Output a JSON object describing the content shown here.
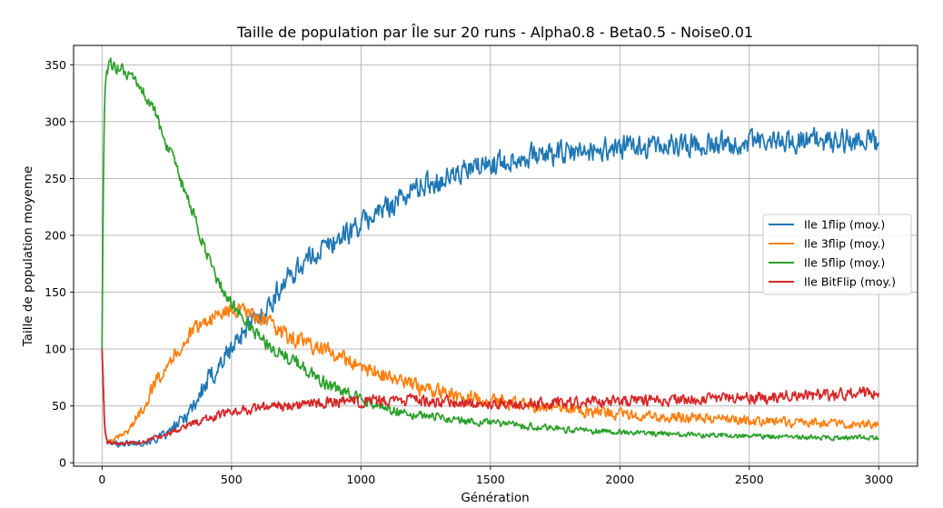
{
  "chart_data": {
    "type": "line",
    "title": "Taille de population par Île sur 20 runs - Alpha0.8 - Beta0.5 - Noise0.01",
    "xlabel": "Génération",
    "ylabel": "Taille de population moyenne",
    "xlim": [
      -110,
      3150
    ],
    "ylim": [
      -3,
      367
    ],
    "xticks": [
      0,
      500,
      1000,
      1500,
      2000,
      2500,
      3000
    ],
    "yticks": [
      0,
      50,
      100,
      150,
      200,
      250,
      300,
      350
    ],
    "xtick_labels": [
      "0",
      "500",
      "1000",
      "1500",
      "2000",
      "2500",
      "3000"
    ],
    "ytick_labels": [
      "0",
      "50",
      "100",
      "150",
      "200",
      "250",
      "300",
      "350"
    ],
    "grid": true,
    "legend_position": "center-right",
    "series": [
      {
        "name": "Ile 1flip (moy.)",
        "color": "#1f77b4",
        "noise": 9,
        "x": [
          0,
          10,
          20,
          50,
          100,
          150,
          200,
          250,
          300,
          350,
          400,
          450,
          500,
          550,
          600,
          650,
          700,
          750,
          800,
          850,
          900,
          950,
          1000,
          1050,
          1100,
          1150,
          1200,
          1250,
          1300,
          1350,
          1400,
          1450,
          1500,
          1550,
          1600,
          1650,
          1700,
          1750,
          1800,
          1850,
          1900,
          2000,
          2100,
          2200,
          2300,
          2400,
          2500,
          2600,
          2700,
          2800,
          2900,
          3000
        ],
        "y": [
          100,
          30,
          18,
          17,
          17,
          18,
          20,
          25,
          35,
          50,
          68,
          85,
          100,
          118,
          125,
          140,
          158,
          170,
          180,
          188,
          195,
          203,
          210,
          218,
          225,
          232,
          240,
          245,
          248,
          252,
          256,
          260,
          263,
          265,
          268,
          270,
          271,
          272,
          272,
          273,
          275,
          277,
          278,
          279,
          280,
          281,
          282,
          282,
          283,
          283,
          283,
          282
        ]
      },
      {
        "name": "Ile 3flip (moy.)",
        "color": "#ff7f0e",
        "noise": 6,
        "x": [
          0,
          10,
          20,
          50,
          100,
          150,
          200,
          250,
          300,
          350,
          400,
          450,
          500,
          550,
          600,
          650,
          700,
          750,
          800,
          850,
          900,
          950,
          1000,
          1100,
          1200,
          1300,
          1400,
          1500,
          1600,
          1700,
          1800,
          1900,
          2000,
          2200,
          2400,
          2600,
          2800,
          3000
        ],
        "y": [
          100,
          30,
          18,
          20,
          28,
          45,
          68,
          88,
          100,
          115,
          125,
          130,
          135,
          133,
          128,
          122,
          113,
          108,
          104,
          100,
          95,
          90,
          85,
          76,
          68,
          62,
          58,
          55,
          52,
          50,
          47,
          45,
          43,
          40,
          38,
          36,
          35,
          34
        ]
      },
      {
        "name": "Ile 5flip (moy.)",
        "color": "#2ca02c",
        "noise": 5,
        "x": [
          0,
          4,
          8,
          12,
          18,
          25,
          35,
          60,
          100,
          150,
          200,
          250,
          300,
          350,
          400,
          450,
          500,
          550,
          600,
          650,
          700,
          750,
          800,
          850,
          900,
          950,
          1000,
          1100,
          1200,
          1300,
          1400,
          1500,
          1600,
          1700,
          1800,
          1900,
          2000,
          2200,
          2400,
          2600,
          2800,
          3000
        ],
        "y": [
          100,
          230,
          300,
          330,
          345,
          349,
          350,
          348,
          340,
          330,
          310,
          280,
          250,
          220,
          185,
          158,
          140,
          125,
          112,
          103,
          95,
          88,
          80,
          72,
          64,
          60,
          55,
          48,
          43,
          40,
          37,
          35,
          33,
          31,
          29,
          28,
          27,
          25,
          24,
          23,
          22,
          22
        ]
      },
      {
        "name": "Ile BitFlip (moy.)",
        "color": "#d62728",
        "noise": 5,
        "x": [
          0,
          10,
          20,
          50,
          100,
          150,
          200,
          250,
          300,
          350,
          400,
          450,
          500,
          600,
          700,
          800,
          900,
          1000,
          1100,
          1200,
          1300,
          1400,
          1500,
          1600,
          1700,
          1800,
          1900,
          2000,
          2200,
          2400,
          2600,
          2800,
          3000
        ],
        "y": [
          100,
          30,
          18,
          17,
          17,
          18,
          22,
          25,
          30,
          35,
          38,
          42,
          45,
          48,
          51,
          52,
          53,
          54,
          54,
          55,
          54,
          53,
          52,
          52,
          52,
          53,
          53,
          54,
          55,
          56,
          58,
          60,
          62
        ]
      }
    ]
  }
}
